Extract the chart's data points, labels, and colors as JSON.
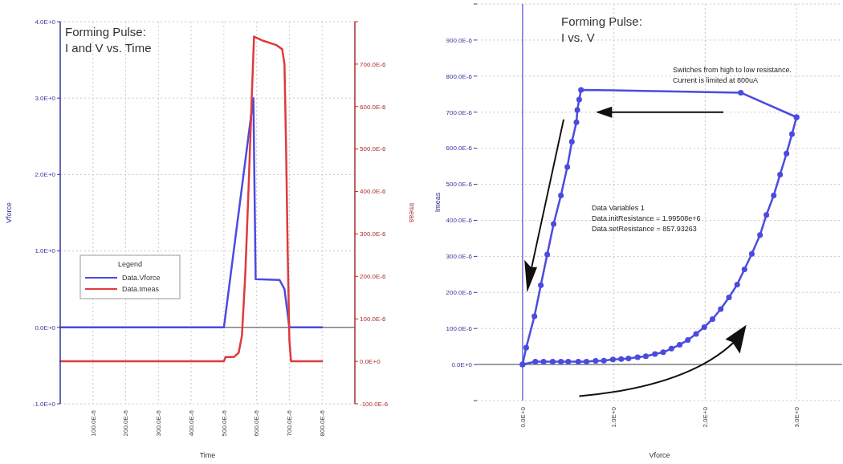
{
  "chart_data": [
    {
      "type": "line",
      "title": "Forming Pulse:\nI and V vs. Time",
      "xlabel": "Time",
      "ylabel": "Vforce",
      "y2label": "Imeas",
      "legend_title": "Legend",
      "legend": "left",
      "grid": true,
      "marker": "none",
      "line_style": "solid",
      "xlim": [
        0,
        0.0009
      ],
      "xticks": [
        {
          "value": 0.0001,
          "label": "100.0E-6"
        },
        {
          "value": 0.0002,
          "label": "200.0E-6"
        },
        {
          "value": 0.0003,
          "label": "300.0E-6"
        },
        {
          "value": 0.0004,
          "label": "400.0E-6"
        },
        {
          "value": 0.0005,
          "label": "500.0E-6"
        },
        {
          "value": 0.0006,
          "label": "600.0E-6"
        },
        {
          "value": 0.0007,
          "label": "700.0E-6"
        },
        {
          "value": 0.0008,
          "label": "800.0E-6"
        }
      ],
      "ylim": [
        -1,
        4
      ],
      "yticks": [
        {
          "value": -1,
          "label": "-1.0E+0"
        },
        {
          "value": 0,
          "label": "0.0E+0"
        },
        {
          "value": 1,
          "label": "1.0E+0"
        },
        {
          "value": 2,
          "label": "2.0E+0"
        },
        {
          "value": 3,
          "label": "3.0E+0"
        },
        {
          "value": 4,
          "label": "4.0E+0"
        }
      ],
      "y2lim": [
        -0.0001,
        0.0008
      ],
      "y2ticks": [
        {
          "value": -0.0001,
          "label": "-100.0E-6"
        },
        {
          "value": 0,
          "label": "0.0E+0"
        },
        {
          "value": 0.0001,
          "label": "100.0E-6"
        },
        {
          "value": 0.0002,
          "label": "200.0E-6"
        },
        {
          "value": 0.0003,
          "label": "300.0E-6"
        },
        {
          "value": 0.0004,
          "label": "400.0E-6"
        },
        {
          "value": 0.0005,
          "label": "500.0E-6"
        },
        {
          "value": 0.0006,
          "label": "600.0E-6"
        },
        {
          "value": 0.0007,
          "label": "700.0E-6"
        },
        {
          "value": 0.0008,
          "label": null
        }
      ],
      "ref_lines": [
        {
          "axis": "y",
          "value": 0,
          "color": "#808080"
        }
      ],
      "series": [
        {
          "name": "Data.Vforce",
          "color": "#4b4be0",
          "x": [
            0,
            0.0005,
            0.00059,
            0.000597,
            0.00067,
            0.000685,
            0.0007,
            0.0008
          ],
          "values": [
            0,
            0,
            3.0,
            0.63,
            0.62,
            0.5,
            0,
            0
          ]
        },
        {
          "name": "Data.Imeas",
          "color": "#e03a3a",
          "axis": "y2",
          "x": [
            0,
            0.0005,
            0.000505,
            0.00053,
            0.000545,
            0.000555,
            0.000565,
            0.000575,
            0.000585,
            0.000592,
            0.00062,
            0.00066,
            0.000678,
            0.000685,
            0.00069,
            0.000695,
            0.0007,
            0.000705,
            0.00072,
            0.0008
          ],
          "values": [
            0,
            0,
            1e-05,
            1e-05,
            2e-05,
            6e-05,
            0.0002,
            0.0004,
            0.00062,
            0.000765,
            0.000755,
            0.000745,
            0.000735,
            0.0007,
            0.0005,
            0.00025,
            5e-05,
            0,
            0,
            0
          ]
        }
      ]
    },
    {
      "type": "line",
      "title": "Forming Pulse:\nI vs. V",
      "xlabel": "Vforce",
      "ylabel": "Imeas",
      "grid": true,
      "marker": "circle",
      "line_style": "solid",
      "legend": false,
      "xlim": [
        -0.5,
        3.5
      ],
      "xticks": [
        {
          "value": 0,
          "label": "0.0E+0"
        },
        {
          "value": 1,
          "label": "1.0E+0"
        },
        {
          "value": 2,
          "label": "2.0E+0"
        },
        {
          "value": 3,
          "label": "3.0E+0"
        }
      ],
      "ylim": [
        -0.0001,
        0.001
      ],
      "yticks": [
        {
          "value": -0.0001,
          "label": null
        },
        {
          "value": 0,
          "label": "0.0E+0"
        },
        {
          "value": 0.0001,
          "label": "100.0E-6"
        },
        {
          "value": 0.0002,
          "label": "200.0E-6"
        },
        {
          "value": 0.0003,
          "label": "300.0E-6"
        },
        {
          "value": 0.0004,
          "label": "400.0E-6"
        },
        {
          "value": 0.0005,
          "label": "500.0E-6"
        },
        {
          "value": 0.0006,
          "label": "600.0E-6"
        },
        {
          "value": 0.0007,
          "label": "700.0E-6"
        },
        {
          "value": 0.0008,
          "label": "800.0E-6"
        },
        {
          "value": 0.0009,
          "label": "900.0E-6"
        },
        {
          "value": 0.001,
          "label": null
        }
      ],
      "ref_lines": [
        {
          "axis": "y",
          "value": 0,
          "color": "#808080"
        },
        {
          "axis": "x",
          "value": 0,
          "color": "#7070e8"
        }
      ],
      "annotations": [
        "Switches from high to low resistance.\nCurrent is limited at 800uA",
        "Data Variables 1\nData.initResistance = 1.99508e+6\nData.setResistance = 857.93263"
      ],
      "series": [
        {
          "type": "line",
          "color": "#4b4be0",
          "x": [
            0,
            0.14,
            0.23,
            0.33,
            0.42,
            0.5,
            0.61,
            0.7,
            0.8,
            0.89,
            0.99,
            1.08,
            1.16,
            1.26,
            1.35,
            1.45,
            1.54,
            1.63,
            1.72,
            1.81,
            1.9,
            1.99,
            2.08,
            2.17,
            2.26,
            2.35,
            2.43,
            2.51,
            2.6,
            2.67,
            2.75,
            2.82,
            2.89,
            2.95,
            3.0
          ],
          "values": [
            0,
            8e-06,
            8e-06,
            8e-06,
            8e-06,
            8e-06,
            8e-06,
            8e-06,
            1e-05,
            1.1e-05,
            1.4e-05,
            1.5e-05,
            1.7e-05,
            2e-05,
            2.3e-05,
            2.9e-05,
            3.4e-05,
            4.4e-05,
            5.5e-05,
            6.8e-05,
            8.5e-05,
            0.000104,
            0.000126,
            0.000154,
            0.000186,
            0.000222,
            0.000264,
            0.000307,
            0.000359,
            0.000415,
            0.000469,
            0.000527,
            0.000585,
            0.000639,
            0.000686
          ]
        },
        {
          "type": "line",
          "color": "#4b4be0",
          "x": [
            3.0,
            2.39,
            0.64,
            0.62,
            0.6,
            0.59,
            0.54,
            0.49,
            0.42,
            0.34,
            0.27,
            0.2,
            0.13,
            0.04,
            0
          ],
          "values": [
            0.000686,
            0.000754,
            0.000762,
            0.000735,
            0.000706,
            0.000672,
            0.000618,
            0.000548,
            0.000469,
            0.00039,
            0.000305,
            0.00022,
            0.000134,
            4.7e-05,
            0
          ]
        }
      ]
    }
  ]
}
